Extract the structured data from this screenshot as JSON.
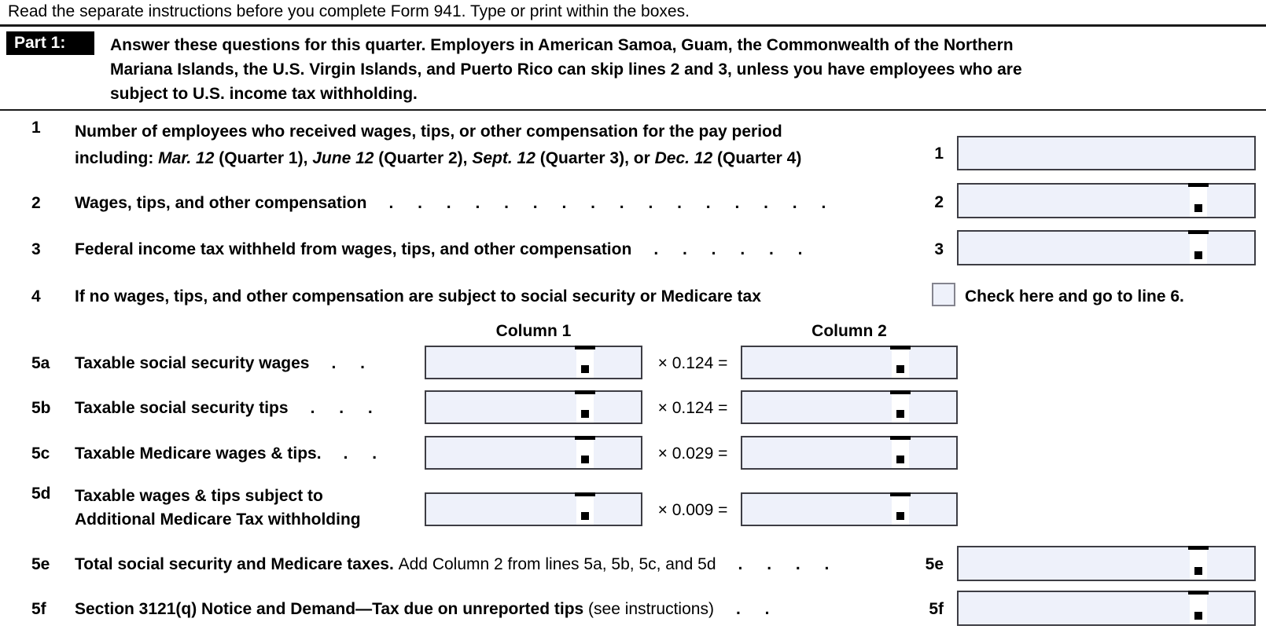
{
  "colors": {
    "box-fill": "#eef1fa",
    "box-border": "#3d3d44",
    "checkbox-border": "#84848e",
    "part-header-bg": "#000000",
    "part-header-text": "#ffffff"
  },
  "header": {
    "instruction": "Read the separate instructions before you complete Form 941. Type or print within the boxes.",
    "part_label": "Part 1:",
    "part_desc_lines": [
      "Answer these questions for this quarter. Employers in American Samoa, Guam, the Commonwealth of the Northern",
      "Mariana Islands, the U.S. Virgin Islands, and Puerto Rico can skip lines 2 and 3, unless you have employees who are",
      "subject to U.S. income tax withholding."
    ]
  },
  "columns": {
    "col1": "Column 1",
    "col2": "Column 2"
  },
  "lines": {
    "l1": {
      "num": "1",
      "text_line1": "Number of employees who received wages, tips, or other compensation for the pay period",
      "text_line2_segments": [
        {
          "s": "b",
          "t": "including: "
        },
        {
          "s": "bi",
          "t": "Mar. 12"
        },
        {
          "s": "b",
          "t": " (Quarter 1), "
        },
        {
          "s": "bi",
          "t": "June 12"
        },
        {
          "s": "b",
          "t": " (Quarter 2), "
        },
        {
          "s": "bi",
          "t": "Sept. 12"
        },
        {
          "s": "b",
          "t": " (Quarter 3), or "
        },
        {
          "s": "bi",
          "t": "Dec. 12"
        },
        {
          "s": "b",
          "t": " (Quarter 4)"
        }
      ],
      "right_num": "1",
      "value": ""
    },
    "l2": {
      "num": "2",
      "label": "Wages, tips, and other compensation",
      "dots": ". . . . . . . . . . . . . . . .",
      "right_num": "2",
      "value": ""
    },
    "l3": {
      "num": "3",
      "label": "Federal income tax withheld from wages, tips, and other compensation",
      "dots": ". . . . . .",
      "right_num": "3",
      "value": ""
    },
    "l4": {
      "num": "4",
      "label": "If no wages, tips, and other compensation are subject to social security or Medicare tax",
      "checkbox_checked": false,
      "check_label": "Check here and go to line 6."
    },
    "l5a": {
      "num": "5a",
      "label": "Taxable social security wages",
      "dots": ". .",
      "mult": "× 0.124 =",
      "col1_value": "",
      "col2_value": ""
    },
    "l5b": {
      "num": "5b",
      "label": "Taxable social security tips",
      "dots": ". . .",
      "mult": "× 0.124 =",
      "col1_value": "",
      "col2_value": ""
    },
    "l5c": {
      "num": "5c",
      "label": "Taxable Medicare wages & tips.",
      "dots": ". .",
      "mult": "× 0.029 =",
      "col1_value": "",
      "col2_value": ""
    },
    "l5d": {
      "num": "5d",
      "label_line1": "Taxable wages & tips subject to",
      "label_line2": "Additional Medicare Tax withholding",
      "mult": "× 0.009 =",
      "col1_value": "",
      "col2_value": ""
    },
    "l5e": {
      "num": "5e",
      "segments": [
        {
          "s": "b",
          "t": "Total social security and Medicare taxes. "
        },
        {
          "s": "r",
          "t": "Add Column 2 from lines 5a, 5b, 5c, and 5d"
        }
      ],
      "dots": ". . . .",
      "right_num": "5e",
      "value": ""
    },
    "l5f": {
      "num": "5f",
      "segments": [
        {
          "s": "b",
          "t": "Section 3121(q) Notice and Demand—Tax due on unreported tips "
        },
        {
          "s": "r",
          "t": "(see instructions)"
        }
      ],
      "dots": ". .",
      "right_num": "5f",
      "value": ""
    }
  }
}
